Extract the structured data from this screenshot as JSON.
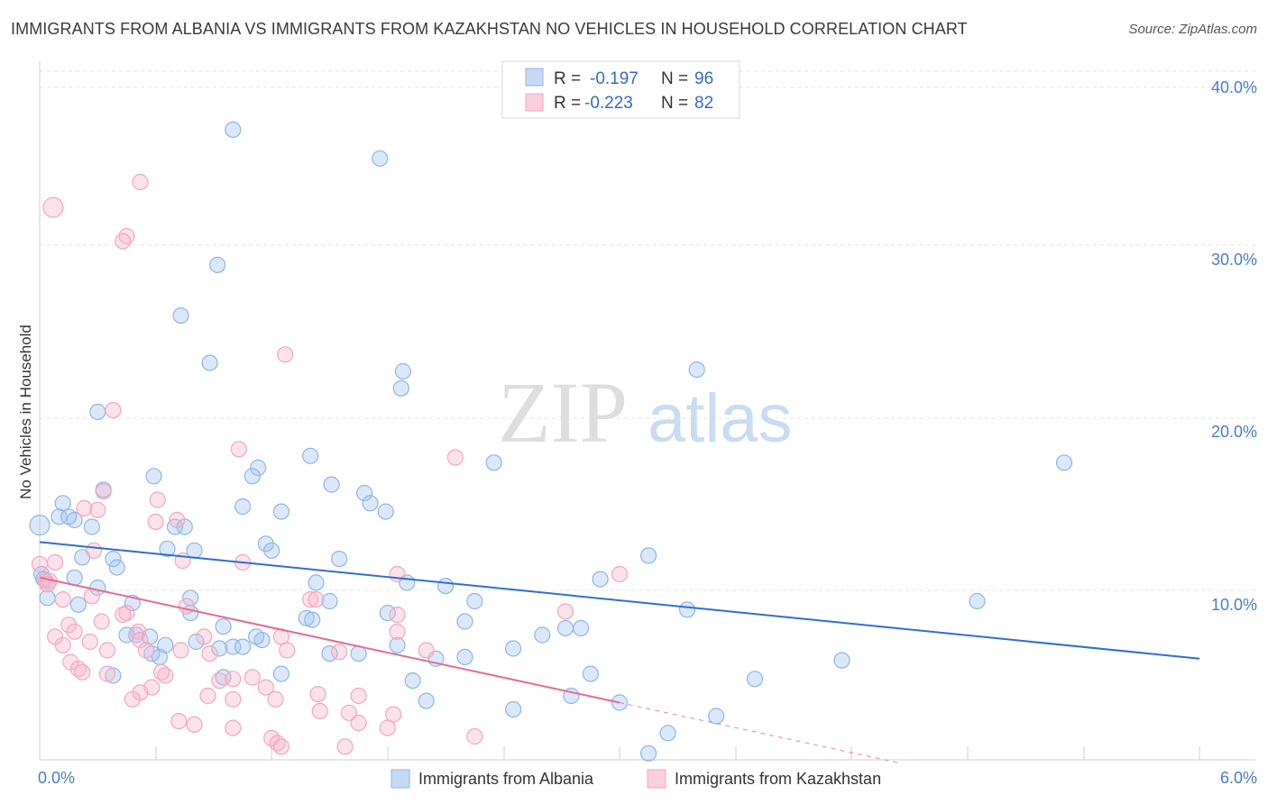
{
  "header": {
    "title": "IMMIGRANTS FROM ALBANIA VS IMMIGRANTS FROM KAZAKHSTAN NO VEHICLES IN HOUSEHOLD CORRELATION CHART",
    "source": "Source: ZipAtlas.com"
  },
  "watermark": {
    "zip": "ZIP",
    "atlas": "atlas"
  },
  "legend": {
    "rows": [
      {
        "r_label": "R =",
        "r_value": "-0.197",
        "n_label": "N =",
        "n_value": "96"
      },
      {
        "r_label": "R =",
        "r_value": "-0.223",
        "n_label": "N =",
        "n_value": "82"
      }
    ]
  },
  "chart_data": {
    "type": "scatter",
    "title": "IMMIGRANTS FROM ALBANIA VS IMMIGRANTS FROM KAZAKHSTAN NO VEHICLES IN HOUSEHOLD CORRELATION CHART",
    "ylabel": "No Vehicles in Household",
    "xlabel": "",
    "xlim": [
      0,
      6
    ],
    "ylim": [
      0,
      40
    ],
    "x_tick_labels": [
      "0.0%",
      "6.0%"
    ],
    "y_ticks": [
      10,
      20,
      30,
      40
    ],
    "y_tick_labels": [
      "10.0%",
      "20.0%",
      "30.0%",
      "40.0%"
    ],
    "grid": true,
    "legend_position": "top-center",
    "series": [
      {
        "name": "Immigrants from Albania",
        "color": "#8fb5e8",
        "trend_color": "#2f6fcf",
        "r": -0.197,
        "n": 96,
        "trend": {
          "x": [
            0.0,
            6.0
          ],
          "y": [
            13.1,
            6.2
          ]
        },
        "points": [
          [
            1.0,
            37.5
          ],
          [
            1.76,
            35.8
          ],
          [
            0.92,
            29.5
          ],
          [
            0.73,
            26.5
          ],
          [
            0.88,
            23.7
          ],
          [
            1.88,
            23.2
          ],
          [
            1.87,
            22.2
          ],
          [
            3.4,
            23.3
          ],
          [
            0.3,
            20.8
          ],
          [
            1.4,
            18.2
          ],
          [
            2.35,
            17.8
          ],
          [
            5.3,
            17.8
          ],
          [
            0.59,
            17.0
          ],
          [
            1.13,
            17.5
          ],
          [
            1.1,
            17.0
          ],
          [
            1.51,
            16.5
          ],
          [
            0.33,
            16.2
          ],
          [
            1.68,
            16.0
          ],
          [
            0.12,
            15.4
          ],
          [
            1.05,
            15.2
          ],
          [
            1.25,
            14.9
          ],
          [
            1.71,
            15.4
          ],
          [
            1.79,
            14.9
          ],
          [
            0.1,
            14.6
          ],
          [
            0.18,
            14.4
          ],
          [
            0.15,
            14.6
          ],
          [
            0.27,
            14.0
          ],
          [
            0.7,
            14.0
          ],
          [
            0.75,
            14.0
          ],
          [
            0.0,
            14.1
          ],
          [
            1.17,
            13.0
          ],
          [
            1.2,
            12.6
          ],
          [
            0.66,
            12.7
          ],
          [
            0.8,
            12.6
          ],
          [
            0.38,
            12.1
          ],
          [
            0.4,
            11.6
          ],
          [
            1.55,
            12.1
          ],
          [
            3.15,
            12.3
          ],
          [
            0.22,
            12.2
          ],
          [
            0.18,
            11.0
          ],
          [
            0.01,
            11.2
          ],
          [
            0.3,
            10.4
          ],
          [
            0.02,
            10.9
          ],
          [
            2.9,
            10.9
          ],
          [
            1.43,
            10.7
          ],
          [
            1.9,
            10.7
          ],
          [
            2.1,
            10.5
          ],
          [
            0.78,
            9.8
          ],
          [
            0.04,
            9.8
          ],
          [
            1.5,
            9.6
          ],
          [
            2.25,
            9.6
          ],
          [
            4.85,
            9.6
          ],
          [
            3.35,
            9.1
          ],
          [
            0.48,
            9.5
          ],
          [
            1.8,
            8.9
          ],
          [
            1.38,
            8.6
          ],
          [
            1.41,
            8.5
          ],
          [
            2.2,
            8.4
          ],
          [
            0.78,
            8.9
          ],
          [
            0.95,
            8.1
          ],
          [
            0.5,
            7.6
          ],
          [
            0.57,
            7.5
          ],
          [
            0.81,
            7.2
          ],
          [
            1.85,
            7.0
          ],
          [
            2.6,
            7.6
          ],
          [
            2.72,
            8.0
          ],
          [
            1.0,
            6.9
          ],
          [
            1.05,
            6.9
          ],
          [
            0.65,
            7.0
          ],
          [
            1.15,
            7.3
          ],
          [
            1.5,
            6.5
          ],
          [
            1.65,
            6.5
          ],
          [
            2.05,
            6.2
          ],
          [
            2.2,
            6.3
          ],
          [
            4.15,
            6.1
          ],
          [
            0.62,
            6.3
          ],
          [
            0.58,
            6.5
          ],
          [
            0.38,
            5.2
          ],
          [
            0.95,
            5.1
          ],
          [
            2.85,
            5.3
          ],
          [
            1.25,
            5.3
          ],
          [
            1.93,
            4.9
          ],
          [
            2.0,
            3.7
          ],
          [
            2.45,
            3.2
          ],
          [
            3.7,
            5.0
          ],
          [
            2.75,
            4.0
          ],
          [
            3.5,
            2.8
          ],
          [
            3.25,
            1.8
          ],
          [
            3.15,
            0.6
          ],
          [
            2.8,
            8.0
          ],
          [
            0.93,
            6.8
          ],
          [
            1.12,
            7.5
          ],
          [
            0.45,
            7.6
          ],
          [
            0.2,
            9.4
          ],
          [
            2.45,
            6.8
          ],
          [
            3.0,
            3.6
          ]
        ]
      },
      {
        "name": "Immigrants from Kazakhstan",
        "color": "#f4a6bf",
        "trend_color": "#e66a93",
        "r": -0.223,
        "n": 82,
        "trend": {
          "x": [
            0.0,
            3.0
          ],
          "y": [
            11.0,
            3.6
          ]
        },
        "trend_extension": {
          "x": [
            3.0,
            6.0
          ],
          "y": [
            3.6,
            -3.8
          ]
        },
        "points": [
          [
            0.07,
            32.9
          ],
          [
            0.52,
            34.4
          ],
          [
            0.45,
            31.2
          ],
          [
            0.43,
            30.9
          ],
          [
            1.27,
            24.2
          ],
          [
            0.38,
            20.9
          ],
          [
            1.03,
            18.6
          ],
          [
            2.15,
            18.1
          ],
          [
            0.33,
            16.1
          ],
          [
            0.61,
            15.6
          ],
          [
            0.23,
            15.1
          ],
          [
            0.3,
            15.0
          ],
          [
            0.6,
            14.3
          ],
          [
            0.71,
            14.4
          ],
          [
            0.74,
            12.0
          ],
          [
            1.05,
            11.9
          ],
          [
            0.0,
            11.8
          ],
          [
            0.08,
            11.9
          ],
          [
            0.28,
            12.6
          ],
          [
            1.85,
            11.2
          ],
          [
            3.0,
            11.2
          ],
          [
            0.03,
            10.8
          ],
          [
            0.04,
            10.6
          ],
          [
            0.05,
            10.8
          ],
          [
            0.12,
            9.7
          ],
          [
            0.27,
            9.9
          ],
          [
            0.76,
            9.3
          ],
          [
            1.4,
            9.7
          ],
          [
            1.43,
            9.7
          ],
          [
            1.85,
            8.8
          ],
          [
            2.72,
            9.0
          ],
          [
            0.45,
            8.9
          ],
          [
            0.43,
            8.8
          ],
          [
            0.32,
            8.4
          ],
          [
            0.15,
            8.2
          ],
          [
            0.18,
            7.8
          ],
          [
            0.08,
            7.5
          ],
          [
            0.51,
            7.8
          ],
          [
            0.52,
            7.3
          ],
          [
            0.85,
            7.5
          ],
          [
            1.25,
            7.5
          ],
          [
            1.85,
            7.8
          ],
          [
            0.12,
            7.0
          ],
          [
            0.26,
            7.2
          ],
          [
            0.55,
            6.7
          ],
          [
            0.35,
            6.7
          ],
          [
            0.73,
            6.7
          ],
          [
            0.88,
            6.5
          ],
          [
            1.28,
            6.7
          ],
          [
            1.55,
            6.6
          ],
          [
            2.0,
            6.7
          ],
          [
            0.16,
            6.0
          ],
          [
            0.2,
            5.6
          ],
          [
            0.22,
            5.4
          ],
          [
            0.35,
            5.3
          ],
          [
            0.65,
            5.2
          ],
          [
            0.63,
            5.4
          ],
          [
            0.93,
            4.9
          ],
          [
            1.0,
            5.0
          ],
          [
            1.1,
            5.1
          ],
          [
            1.17,
            4.5
          ],
          [
            0.58,
            4.5
          ],
          [
            0.52,
            4.2
          ],
          [
            0.48,
            3.8
          ],
          [
            0.87,
            4.0
          ],
          [
            1.0,
            3.8
          ],
          [
            1.22,
            3.8
          ],
          [
            1.44,
            4.1
          ],
          [
            1.65,
            4.0
          ],
          [
            1.45,
            3.1
          ],
          [
            1.6,
            3.0
          ],
          [
            1.65,
            2.4
          ],
          [
            1.83,
            2.9
          ],
          [
            0.72,
            2.5
          ],
          [
            0.8,
            2.3
          ],
          [
            1.0,
            2.1
          ],
          [
            1.8,
            2.1
          ],
          [
            1.2,
            1.5
          ],
          [
            1.23,
            1.2
          ],
          [
            1.25,
            1.0
          ],
          [
            1.58,
            1.0
          ],
          [
            2.25,
            1.6
          ]
        ]
      }
    ]
  }
}
